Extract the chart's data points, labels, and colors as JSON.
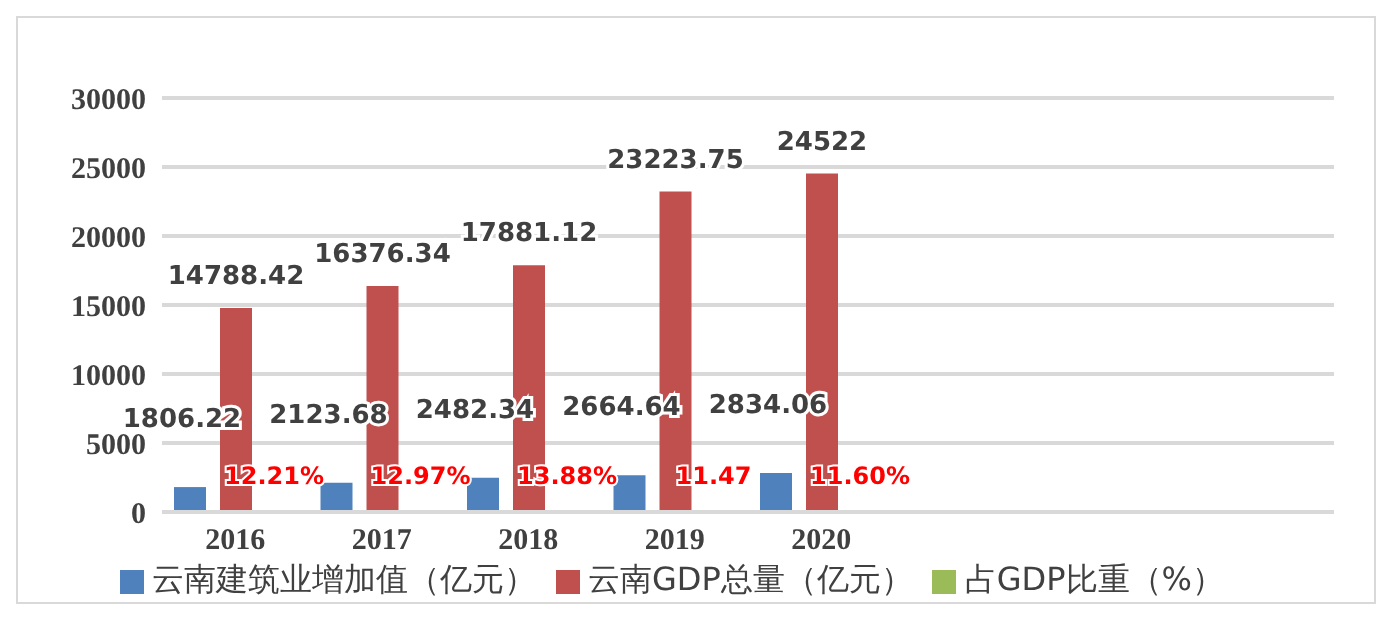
{
  "chart_data": {
    "type": "bar",
    "categories": [
      "2016",
      "2017",
      "2018",
      "2019",
      "2020",
      null,
      null,
      null
    ],
    "series": [
      {
        "name": "云南建筑业增加值（亿元）",
        "color": "#4f81bd",
        "values": [
          1806.22,
          2123.68,
          2482.34,
          2664.64,
          2834.06,
          null,
          null,
          null
        ],
        "value_labels": [
          "1806.22",
          "2123.68",
          "2482.34",
          "2664.64",
          "2834.06",
          null,
          null,
          null
        ]
      },
      {
        "name": "云南GDP总量（亿元）",
        "color": "#c0504d",
        "values": [
          14788.42,
          16376.34,
          17881.12,
          23223.75,
          24522,
          null,
          null,
          null
        ],
        "value_labels": [
          "14788.42",
          "16376.34",
          "17881.12",
          "23223.75",
          "24522",
          null,
          null,
          null
        ]
      },
      {
        "name": "占GDP比重（%）",
        "color": "#9bbb59",
        "values": [
          12.21,
          12.97,
          13.88,
          11.47,
          11.6,
          null,
          null,
          null
        ],
        "value_labels": [
          "12.21%",
          "12.97%",
          "13.88%",
          "11.47",
          "11.60%",
          null,
          null,
          null
        ]
      }
    ],
    "ylim": [
      0,
      30000
    ],
    "yticks": [
      0,
      5000,
      10000,
      15000,
      20000,
      25000,
      30000
    ],
    "grid": "y",
    "legend": "bottom"
  }
}
